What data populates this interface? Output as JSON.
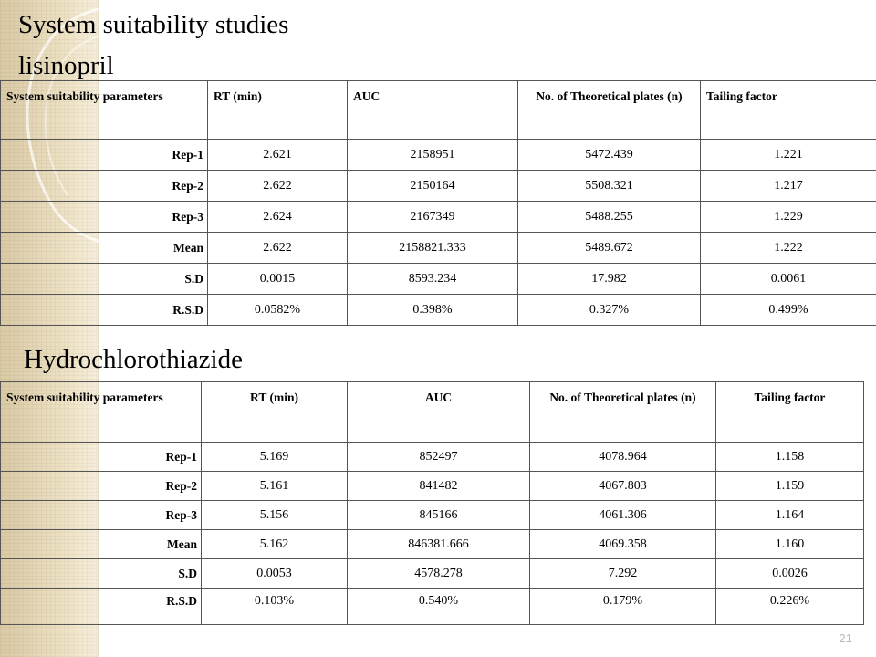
{
  "slide": {
    "title": "System suitability studies",
    "page_number": "21"
  },
  "sections": [
    {
      "heading": "lisinopril",
      "headers": [
        "System suitability parameters",
        "RT (min)",
        "AUC",
        "No. of Theoretical plates (n)",
        "Tailing factor"
      ],
      "rows": [
        [
          "Rep-1",
          "2.621",
          "2158951",
          "5472.439",
          "1.221"
        ],
        [
          "Rep-2",
          "2.622",
          "2150164",
          "5508.321",
          "1.217"
        ],
        [
          "Rep-3",
          "2.624",
          "2167349",
          "5488.255",
          "1.229"
        ],
        [
          "Mean",
          "2.622",
          "2158821.333",
          "5489.672",
          "1.222"
        ],
        [
          "S.D",
          "0.0015",
          "8593.234",
          "17.982",
          "0.0061"
        ],
        [
          "R.S.D",
          "0.0582%",
          "0.398%",
          "0.327%",
          "0.499%"
        ]
      ]
    },
    {
      "heading": "Hydrochlorothiazide",
      "headers": [
        "System suitability parameters",
        "RT (min)",
        "AUC",
        "No. of Theoretical plates (n)",
        "Tailing factor"
      ],
      "rows": [
        [
          "Rep-1",
          "5.169",
          "852497",
          "4078.964",
          "1.158"
        ],
        [
          "Rep-2",
          "5.161",
          "841482",
          "4067.803",
          "1.159"
        ],
        [
          "Rep-3",
          "5.156",
          "845166",
          "4061.306",
          "1.164"
        ],
        [
          "Mean",
          "5.162",
          "846381.666",
          "4069.358",
          "1.160"
        ],
        [
          "S.D",
          "0.0053",
          "4578.278",
          "7.292",
          "0.0026"
        ],
        [
          "R.S.D",
          "0.103%",
          "0.540%",
          "0.179%",
          "0.226%"
        ]
      ]
    }
  ]
}
